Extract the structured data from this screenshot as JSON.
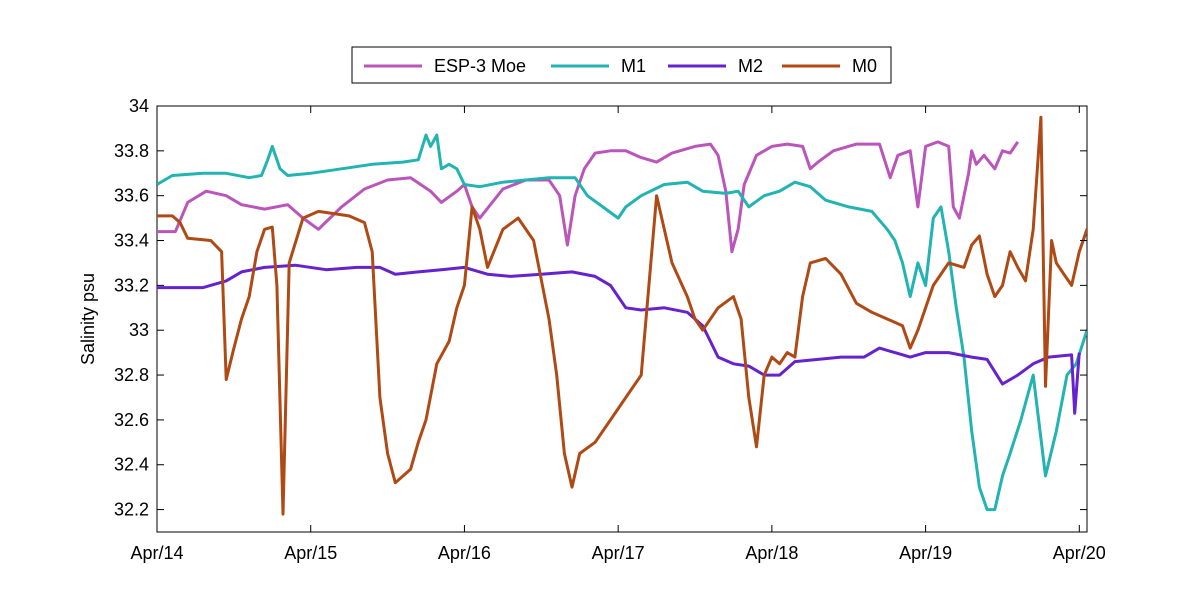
{
  "chart_data": {
    "type": "line",
    "title": "",
    "xlabel": "",
    "ylabel": "Salinity psu",
    "xlim": [
      0,
      6.05
    ],
    "ylim": [
      32.1,
      34
    ],
    "x_ticks": [
      {
        "x": 0,
        "label": "Apr/14"
      },
      {
        "x": 1,
        "label": "Apr/15"
      },
      {
        "x": 2,
        "label": "Apr/16"
      },
      {
        "x": 3,
        "label": "Apr/17"
      },
      {
        "x": 4,
        "label": "Apr/18"
      },
      {
        "x": 5,
        "label": "Apr/19"
      },
      {
        "x": 6,
        "label": "Apr/20"
      }
    ],
    "y_ticks": [
      {
        "y": 32.2,
        "label": "32.2"
      },
      {
        "y": 32.4,
        "label": "32.4"
      },
      {
        "y": 32.6,
        "label": "32.6"
      },
      {
        "y": 32.8,
        "label": "32.8"
      },
      {
        "y": 33.0,
        "label": "33"
      },
      {
        "y": 33.2,
        "label": "33.2"
      },
      {
        "y": 33.4,
        "label": "33.4"
      },
      {
        "y": 33.6,
        "label": "33.6"
      },
      {
        "y": 33.8,
        "label": "33.8"
      },
      {
        "y": 34.0,
        "label": "34"
      }
    ],
    "grid": false,
    "legend": "top-center",
    "series": [
      {
        "name": "ESP-3 Moe",
        "color": "#bb55bb",
        "points": [
          [
            0,
            33.44
          ],
          [
            0.12,
            33.44
          ],
          [
            0.2,
            33.57
          ],
          [
            0.32,
            33.62
          ],
          [
            0.45,
            33.6
          ],
          [
            0.55,
            33.56
          ],
          [
            0.7,
            33.54
          ],
          [
            0.85,
            33.56
          ],
          [
            0.95,
            33.5
          ],
          [
            1.05,
            33.45
          ],
          [
            1.2,
            33.55
          ],
          [
            1.35,
            33.63
          ],
          [
            1.5,
            33.67
          ],
          [
            1.65,
            33.68
          ],
          [
            1.78,
            33.62
          ],
          [
            1.85,
            33.57
          ],
          [
            1.95,
            33.62
          ],
          [
            2.0,
            33.65
          ],
          [
            2.05,
            33.55
          ],
          [
            2.1,
            33.5
          ],
          [
            2.25,
            33.63
          ],
          [
            2.4,
            33.67
          ],
          [
            2.55,
            33.67
          ],
          [
            2.62,
            33.6
          ],
          [
            2.67,
            33.38
          ],
          [
            2.72,
            33.6
          ],
          [
            2.78,
            33.72
          ],
          [
            2.85,
            33.79
          ],
          [
            2.95,
            33.8
          ],
          [
            3.05,
            33.8
          ],
          [
            3.15,
            33.77
          ],
          [
            3.25,
            33.75
          ],
          [
            3.35,
            33.79
          ],
          [
            3.5,
            33.82
          ],
          [
            3.6,
            33.83
          ],
          [
            3.65,
            33.78
          ],
          [
            3.7,
            33.62
          ],
          [
            3.74,
            33.35
          ],
          [
            3.78,
            33.45
          ],
          [
            3.82,
            33.65
          ],
          [
            3.9,
            33.78
          ],
          [
            4.0,
            33.82
          ],
          [
            4.1,
            33.83
          ],
          [
            4.2,
            33.82
          ],
          [
            4.25,
            33.72
          ],
          [
            4.3,
            33.75
          ],
          [
            4.4,
            33.8
          ],
          [
            4.55,
            33.83
          ],
          [
            4.7,
            33.83
          ],
          [
            4.77,
            33.68
          ],
          [
            4.82,
            33.78
          ],
          [
            4.9,
            33.8
          ],
          [
            4.95,
            33.55
          ],
          [
            5.0,
            33.82
          ],
          [
            5.08,
            33.84
          ],
          [
            5.15,
            33.82
          ],
          [
            5.18,
            33.55
          ],
          [
            5.22,
            33.5
          ],
          [
            5.28,
            33.7
          ],
          [
            5.3,
            33.8
          ],
          [
            5.33,
            33.74
          ],
          [
            5.38,
            33.78
          ],
          [
            5.45,
            33.72
          ],
          [
            5.5,
            33.8
          ],
          [
            5.55,
            33.79
          ],
          [
            5.6,
            33.84
          ]
        ]
      },
      {
        "name": "M1",
        "color": "#22b3b3",
        "points": [
          [
            0,
            33.65
          ],
          [
            0.1,
            33.69
          ],
          [
            0.3,
            33.7
          ],
          [
            0.45,
            33.7
          ],
          [
            0.6,
            33.68
          ],
          [
            0.68,
            33.69
          ],
          [
            0.72,
            33.76
          ],
          [
            0.75,
            33.82
          ],
          [
            0.8,
            33.72
          ],
          [
            0.85,
            33.69
          ],
          [
            1.0,
            33.7
          ],
          [
            1.2,
            33.72
          ],
          [
            1.4,
            33.74
          ],
          [
            1.6,
            33.75
          ],
          [
            1.7,
            33.76
          ],
          [
            1.75,
            33.87
          ],
          [
            1.78,
            33.82
          ],
          [
            1.82,
            33.87
          ],
          [
            1.85,
            33.72
          ],
          [
            1.9,
            33.74
          ],
          [
            1.95,
            33.72
          ],
          [
            2.0,
            33.65
          ],
          [
            2.1,
            33.64
          ],
          [
            2.25,
            33.66
          ],
          [
            2.4,
            33.67
          ],
          [
            2.55,
            33.68
          ],
          [
            2.72,
            33.68
          ],
          [
            2.8,
            33.6
          ],
          [
            2.9,
            33.55
          ],
          [
            3.0,
            33.5
          ],
          [
            3.05,
            33.55
          ],
          [
            3.15,
            33.6
          ],
          [
            3.3,
            33.65
          ],
          [
            3.45,
            33.66
          ],
          [
            3.55,
            33.62
          ],
          [
            3.7,
            33.61
          ],
          [
            3.78,
            33.62
          ],
          [
            3.85,
            33.55
          ],
          [
            3.95,
            33.6
          ],
          [
            4.05,
            33.62
          ],
          [
            4.15,
            33.66
          ],
          [
            4.25,
            33.64
          ],
          [
            4.35,
            33.58
          ],
          [
            4.5,
            33.55
          ],
          [
            4.65,
            33.53
          ],
          [
            4.75,
            33.45
          ],
          [
            4.8,
            33.4
          ],
          [
            4.85,
            33.3
          ],
          [
            4.9,
            33.15
          ],
          [
            4.95,
            33.3
          ],
          [
            5.0,
            33.2
          ],
          [
            5.05,
            33.5
          ],
          [
            5.1,
            33.55
          ],
          [
            5.15,
            33.35
          ],
          [
            5.2,
            33.1
          ],
          [
            5.25,
            32.88
          ],
          [
            5.3,
            32.55
          ],
          [
            5.35,
            32.3
          ],
          [
            5.4,
            32.2
          ],
          [
            5.45,
            32.2
          ],
          [
            5.5,
            32.35
          ],
          [
            5.55,
            32.45
          ],
          [
            5.62,
            32.6
          ],
          [
            5.7,
            32.8
          ],
          [
            5.78,
            32.35
          ],
          [
            5.85,
            32.55
          ],
          [
            5.92,
            32.8
          ],
          [
            5.98,
            32.85
          ],
          [
            6.05,
            33.0
          ]
        ]
      },
      {
        "name": "M2",
        "color": "#6622cc",
        "points": [
          [
            0,
            33.19
          ],
          [
            0.3,
            33.19
          ],
          [
            0.45,
            33.22
          ],
          [
            0.55,
            33.26
          ],
          [
            0.7,
            33.28
          ],
          [
            0.9,
            33.29
          ],
          [
            1.1,
            33.27
          ],
          [
            1.3,
            33.28
          ],
          [
            1.45,
            33.28
          ],
          [
            1.55,
            33.25
          ],
          [
            1.7,
            33.26
          ],
          [
            1.85,
            33.27
          ],
          [
            2.0,
            33.28
          ],
          [
            2.15,
            33.25
          ],
          [
            2.3,
            33.24
          ],
          [
            2.5,
            33.25
          ],
          [
            2.7,
            33.26
          ],
          [
            2.85,
            33.24
          ],
          [
            2.95,
            33.2
          ],
          [
            3.05,
            33.1
          ],
          [
            3.15,
            33.09
          ],
          [
            3.3,
            33.1
          ],
          [
            3.45,
            33.08
          ],
          [
            3.55,
            33.02
          ],
          [
            3.6,
            32.95
          ],
          [
            3.65,
            32.88
          ],
          [
            3.75,
            32.85
          ],
          [
            3.85,
            32.84
          ],
          [
            3.95,
            32.8
          ],
          [
            4.05,
            32.8
          ],
          [
            4.15,
            32.86
          ],
          [
            4.3,
            32.87
          ],
          [
            4.45,
            32.88
          ],
          [
            4.6,
            32.88
          ],
          [
            4.7,
            32.92
          ],
          [
            4.8,
            32.9
          ],
          [
            4.9,
            32.88
          ],
          [
            5.0,
            32.9
          ],
          [
            5.15,
            32.9
          ],
          [
            5.3,
            32.88
          ],
          [
            5.4,
            32.87
          ],
          [
            5.5,
            32.76
          ],
          [
            5.6,
            32.8
          ],
          [
            5.7,
            32.85
          ],
          [
            5.8,
            32.88
          ],
          [
            5.95,
            32.89
          ],
          [
            5.97,
            32.63
          ],
          [
            6.0,
            32.9
          ]
        ]
      },
      {
        "name": "M0",
        "color": "#b04a15",
        "points": [
          [
            0,
            33.51
          ],
          [
            0.1,
            33.51
          ],
          [
            0.15,
            33.48
          ],
          [
            0.2,
            33.41
          ],
          [
            0.35,
            33.4
          ],
          [
            0.42,
            33.35
          ],
          [
            0.45,
            32.78
          ],
          [
            0.5,
            32.92
          ],
          [
            0.55,
            33.05
          ],
          [
            0.6,
            33.15
          ],
          [
            0.65,
            33.35
          ],
          [
            0.7,
            33.45
          ],
          [
            0.75,
            33.46
          ],
          [
            0.78,
            33.2
          ],
          [
            0.82,
            32.18
          ],
          [
            0.86,
            33.3
          ],
          [
            0.95,
            33.5
          ],
          [
            1.05,
            33.53
          ],
          [
            1.15,
            33.52
          ],
          [
            1.25,
            33.51
          ],
          [
            1.35,
            33.48
          ],
          [
            1.4,
            33.35
          ],
          [
            1.45,
            32.7
          ],
          [
            1.5,
            32.45
          ],
          [
            1.55,
            32.32
          ],
          [
            1.65,
            32.38
          ],
          [
            1.7,
            32.5
          ],
          [
            1.75,
            32.6
          ],
          [
            1.82,
            32.85
          ],
          [
            1.9,
            32.95
          ],
          [
            1.95,
            33.1
          ],
          [
            2.0,
            33.2
          ],
          [
            2.05,
            33.55
          ],
          [
            2.1,
            33.45
          ],
          [
            2.15,
            33.28
          ],
          [
            2.25,
            33.45
          ],
          [
            2.35,
            33.5
          ],
          [
            2.45,
            33.4
          ],
          [
            2.55,
            33.05
          ],
          [
            2.6,
            32.8
          ],
          [
            2.65,
            32.45
          ],
          [
            2.7,
            32.3
          ],
          [
            2.75,
            32.45
          ],
          [
            2.85,
            32.5
          ],
          [
            2.95,
            32.6
          ],
          [
            3.05,
            32.7
          ],
          [
            3.15,
            32.8
          ],
          [
            3.2,
            33.2
          ],
          [
            3.25,
            33.6
          ],
          [
            3.3,
            33.45
          ],
          [
            3.35,
            33.3
          ],
          [
            3.45,
            33.15
          ],
          [
            3.5,
            33.05
          ],
          [
            3.55,
            33.0
          ],
          [
            3.65,
            33.1
          ],
          [
            3.75,
            33.15
          ],
          [
            3.8,
            33.05
          ],
          [
            3.85,
            32.7
          ],
          [
            3.9,
            32.48
          ],
          [
            3.95,
            32.8
          ],
          [
            4.0,
            32.88
          ],
          [
            4.05,
            32.85
          ],
          [
            4.1,
            32.9
          ],
          [
            4.15,
            32.88
          ],
          [
            4.2,
            33.15
          ],
          [
            4.25,
            33.3
          ],
          [
            4.35,
            33.32
          ],
          [
            4.45,
            33.25
          ],
          [
            4.55,
            33.12
          ],
          [
            4.65,
            33.08
          ],
          [
            4.75,
            33.05
          ],
          [
            4.85,
            33.02
          ],
          [
            4.9,
            32.92
          ],
          [
            4.95,
            33.0
          ],
          [
            5.05,
            33.2
          ],
          [
            5.15,
            33.3
          ],
          [
            5.25,
            33.28
          ],
          [
            5.3,
            33.38
          ],
          [
            5.35,
            33.42
          ],
          [
            5.4,
            33.25
          ],
          [
            5.45,
            33.15
          ],
          [
            5.5,
            33.2
          ],
          [
            5.55,
            33.35
          ],
          [
            5.6,
            33.28
          ],
          [
            5.65,
            33.22
          ],
          [
            5.7,
            33.45
          ],
          [
            5.75,
            33.95
          ],
          [
            5.78,
            32.75
          ],
          [
            5.82,
            33.4
          ],
          [
            5.85,
            33.3
          ],
          [
            5.9,
            33.25
          ],
          [
            5.95,
            33.2
          ],
          [
            6.0,
            33.35
          ],
          [
            6.05,
            33.45
          ],
          [
            6.1,
            33.4
          ],
          [
            6.15,
            33.38
          ],
          [
            6.2,
            33.38
          ]
        ]
      }
    ]
  }
}
